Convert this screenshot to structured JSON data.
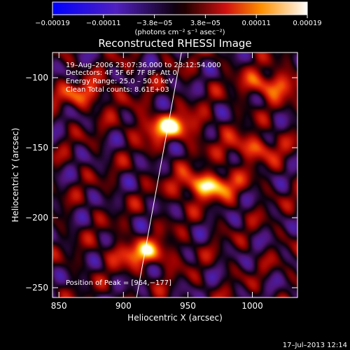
{
  "chart_data": {
    "type": "heatmap",
    "title": "Reconstructed RHESSI Image",
    "xlabel": "Heliocentric X (arcsec)",
    "ylabel": "Heliocentric Y (arcsec)",
    "xlim": [
      845,
      1035
    ],
    "ylim": [
      -257,
      -82
    ],
    "x_ticks": [
      850,
      900,
      950,
      1000
    ],
    "y_ticks": [
      -100,
      -150,
      -200,
      -250
    ],
    "x_tick_labels": [
      "850",
      "900",
      "950",
      "1000"
    ],
    "y_tick_labels": [
      "−100",
      "−150",
      "−200",
      "−250"
    ],
    "colorbar": {
      "min": -0.00019,
      "max": 0.00019,
      "tick_labels": [
        "−0.00019",
        "−0.00011",
        "−3.8e−05",
        "3.8e−05",
        "0.00011",
        "0.00019"
      ],
      "units_label": "(photons cm⁻² s⁻¹ asec⁻²)",
      "colormap": "blue-purple-black-red-yellow-white"
    },
    "annotations": {
      "time_range": "19–Aug–2006 23:07:36.000 to 23:12:54.000",
      "detectors": "Detectors: 4F 5F 6F 7F 8F, Att 0",
      "energy": "Energy Range: 25.0 – 50.0 keV",
      "clean": "Clean     Total counts: 8.61E+03",
      "peak": "Position of Peak = [964,−177]"
    },
    "peak": {
      "x": 964,
      "y": -177
    },
    "bright_blobs": [
      {
        "x": 935,
        "y": -135,
        "amp": 1.0
      },
      {
        "x": 965,
        "y": -177,
        "amp": 1.05
      },
      {
        "x": 915,
        "y": -225,
        "amp": 0.85
      },
      {
        "x": 1015,
        "y": -105,
        "amp": 0.75
      },
      {
        "x": 1000,
        "y": -150,
        "amp": 0.6
      },
      {
        "x": 870,
        "y": -112,
        "amp": 0.55
      }
    ],
    "limb_line": [
      [
        910,
        -258
      ],
      [
        945,
        -82
      ]
    ],
    "grid": false
  },
  "footer": {
    "timestamp": "17–Jul–2013 12:14"
  }
}
